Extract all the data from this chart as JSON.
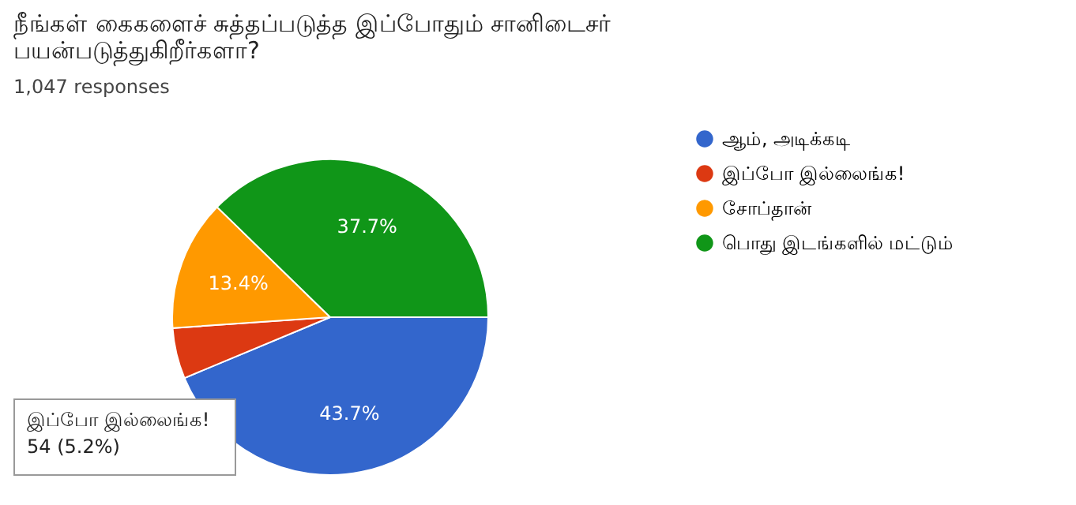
{
  "chart_data": {
    "type": "pie",
    "title": "நீங்கள் கைகளைச் சுத்தப்படுத்த இப்போதும் சானிடைசர் பயன்படுத்துகிறீர்களா?",
    "subtitle": "1,047 responses",
    "categories": [
      "ஆம், அடிக்கடி",
      "இப்போ இல்லைங்க!",
      "சோப்தான்",
      "பொது இடங்களில் மட்டும்"
    ],
    "values": [
      43.7,
      5.2,
      13.4,
      37.7
    ],
    "colors": [
      "#3366cc",
      "#dc3912",
      "#ff9900",
      "#109618"
    ],
    "value_labels": [
      "43.7%",
      null,
      "13.4%",
      "37.7%"
    ],
    "legend": "right",
    "annotations": [
      "இப்போ இல்லைங்க!\n54 (5.2%)"
    ]
  }
}
